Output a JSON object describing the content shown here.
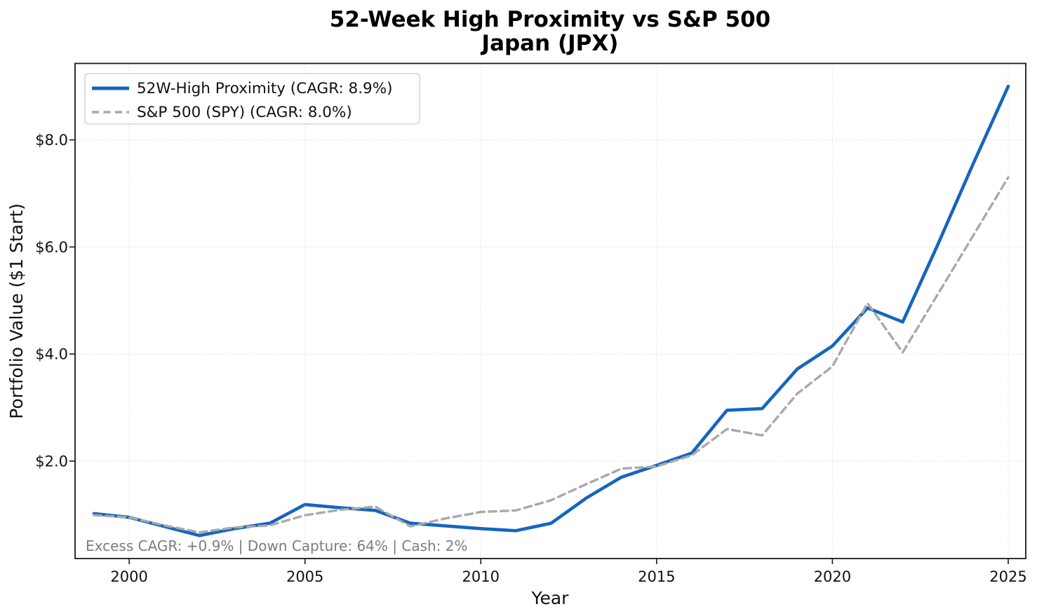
{
  "title": {
    "line1": "52-Week High Proximity vs S&P 500",
    "line2": "Japan (JPX)"
  },
  "axes": {
    "xlabel": "Year",
    "ylabel": "Portfolio Value ($1 Start)",
    "x_ticks": [
      2000,
      2005,
      2010,
      2015,
      2020,
      2025
    ],
    "y_ticks": [
      {
        "value": 2,
        "label": "$2.0"
      },
      {
        "value": 4,
        "label": "$4.0"
      },
      {
        "value": 6,
        "label": "$6.0"
      },
      {
        "value": 8,
        "label": "$8.0"
      }
    ]
  },
  "legend": {
    "items": [
      {
        "label": "52W-High Proximity  (CAGR: 8.9%)",
        "color": "#1565c0",
        "style": "solid"
      },
      {
        "label": "S&P 500 (SPY)  (CAGR: 8.0%)",
        "color": "#a9a9a9",
        "style": "dashed"
      }
    ]
  },
  "annotation": "Excess CAGR: +0.9%  |  Down Capture: 64%  |  Cash: 2%",
  "colors": {
    "strategy_line": "#1565c0",
    "benchmark_line": "#a9a9a9",
    "grid": "#dedede",
    "spine": "#1a1a1a",
    "annotation_text": "#7c7c7c",
    "legend_border": "#cccccc",
    "background": "#ffffff"
  },
  "chart_data": {
    "type": "line",
    "title": "52-Week High Proximity vs S&P 500 — Japan (JPX)",
    "xlabel": "Year",
    "ylabel": "Portfolio Value ($1 Start)",
    "x": [
      1999,
      2000,
      2001,
      2002,
      2003,
      2004,
      2005,
      2006,
      2007,
      2008,
      2009,
      2010,
      2011,
      2012,
      2013,
      2014,
      2015,
      2016,
      2017,
      2018,
      2019,
      2020,
      2021,
      2022,
      2023,
      2024,
      2025
    ],
    "series": [
      {
        "name": "52W-High Proximity (CAGR: 8.9%)",
        "color": "#1565c0",
        "style": "solid",
        "values": [
          1.02,
          0.95,
          0.78,
          0.61,
          0.74,
          0.84,
          1.19,
          1.13,
          1.08,
          0.84,
          0.79,
          0.74,
          0.7,
          0.84,
          1.31,
          1.7,
          1.92,
          2.15,
          2.95,
          2.98,
          3.72,
          4.15,
          4.86,
          4.6,
          6.05,
          7.55,
          9.0
        ]
      },
      {
        "name": "S&P 500 (SPY) (CAGR: 8.0%)",
        "color": "#a9a9a9",
        "style": "dashed",
        "values": [
          0.99,
          0.95,
          0.8,
          0.67,
          0.76,
          0.8,
          0.99,
          1.09,
          1.15,
          0.78,
          0.93,
          1.05,
          1.08,
          1.27,
          1.57,
          1.86,
          1.9,
          2.11,
          2.6,
          2.48,
          3.26,
          3.77,
          4.95,
          4.03,
          5.12,
          6.21,
          7.3
        ]
      }
    ],
    "xlim": [
      1998.45,
      2025.5
    ],
    "ylim": [
      0.18,
      9.43
    ],
    "grid": true,
    "legend_position": "upper left",
    "stats_annotation": {
      "excess_cagr": "+0.9%",
      "down_capture": "64%",
      "cash": "2%"
    }
  }
}
